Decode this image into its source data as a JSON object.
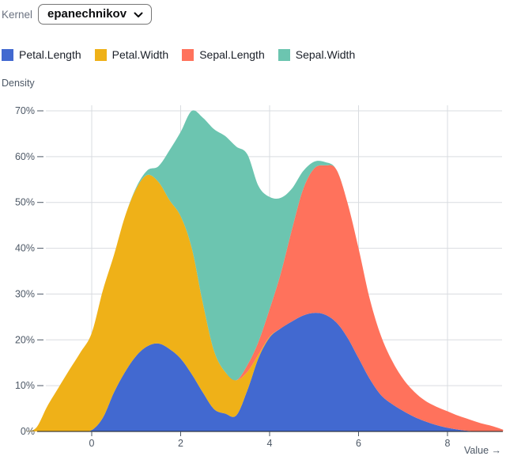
{
  "header": {
    "label": "Kernel",
    "value": "epanechnikov"
  },
  "chart_data": {
    "type": "area",
    "stacked": true,
    "title": "",
    "xlabel": "Value →",
    "ylabel": "Density",
    "x_ticks": [
      0,
      2,
      4,
      6,
      8
    ],
    "y_ticks": [
      0,
      10,
      20,
      30,
      40,
      50,
      60,
      70
    ],
    "y_tick_format": "%",
    "xlim": [
      -1.5,
      9.3
    ],
    "ylim": [
      0,
      71.5
    ],
    "grid": true,
    "x": [
      -1.5,
      -1.25,
      -1,
      -0.75,
      -0.5,
      -0.25,
      0,
      0.25,
      0.5,
      0.75,
      1,
      1.25,
      1.5,
      1.75,
      2,
      2.25,
      2.5,
      2.75,
      3,
      3.25,
      3.5,
      3.75,
      4,
      4.25,
      4.5,
      4.75,
      5,
      5.25,
      5.5,
      5.75,
      6,
      6.25,
      6.5,
      6.75,
      7,
      7.25,
      7.5,
      7.75,
      8,
      8.25,
      8.5,
      8.75,
      9,
      9.25
    ],
    "series": [
      {
        "name": "Petal.Length",
        "color": "#4269d0",
        "values": [
          0,
          0,
          0,
          0,
          0,
          0,
          0.3,
          3,
          8.5,
          13,
          16.5,
          18.6,
          19.2,
          18,
          15.9,
          12.5,
          8.5,
          4.9,
          3.9,
          3.5,
          9,
          16,
          20.5,
          22.5,
          24,
          25.3,
          25.9,
          25.5,
          23.8,
          20.5,
          16,
          11.5,
          8,
          6,
          4.5,
          3.2,
          2.2,
          1.4,
          0.8,
          0.4,
          0.1,
          0,
          0,
          0
        ]
      },
      {
        "name": "Petal.Width",
        "color": "#efb118",
        "values": [
          0,
          0.8,
          5.5,
          9.5,
          13.5,
          17.3,
          21.2,
          27.8,
          30,
          34,
          36.5,
          37.4,
          35.3,
          32.5,
          31.1,
          27.5,
          19.5,
          12.7,
          9.1,
          7.7,
          4,
          0.8,
          0.2,
          0,
          0,
          0,
          0,
          0,
          0,
          0,
          0,
          0,
          0,
          0,
          0,
          0,
          0,
          0,
          0,
          0,
          0,
          0,
          0,
          0
        ]
      },
      {
        "name": "Sepal.Length",
        "color": "#ff725c",
        "values": [
          0,
          0,
          0,
          0,
          0,
          0,
          0,
          0,
          0,
          0,
          0,
          0,
          0,
          0,
          0,
          0,
          0,
          0,
          0,
          0,
          1.5,
          2.8,
          6,
          12,
          20,
          27.5,
          31.5,
          32.6,
          33.4,
          29.5,
          24,
          17.5,
          13,
          9.5,
          7,
          5.5,
          4.5,
          4,
          3.6,
          3,
          2.5,
          1.8,
          1.2,
          0.4
        ]
      },
      {
        "name": "Sepal.Width",
        "color": "#6cc5b0",
        "values": [
          0,
          0,
          0,
          0,
          0,
          0,
          0,
          0,
          0,
          0,
          0.3,
          1,
          3.4,
          10.9,
          18.4,
          30,
          40.5,
          48.4,
          51.5,
          51,
          46,
          34,
          24.5,
          16.5,
          9,
          4,
          1.5,
          0.7,
          0,
          0,
          0,
          0,
          0,
          0,
          0,
          0,
          0,
          0,
          0,
          0,
          0,
          0,
          0,
          0
        ]
      }
    ],
    "legend_position": "top",
    "colors": {
      "grid": "#d9dce0",
      "axis_text": "#4d5866",
      "baseline": "#16191d"
    }
  }
}
